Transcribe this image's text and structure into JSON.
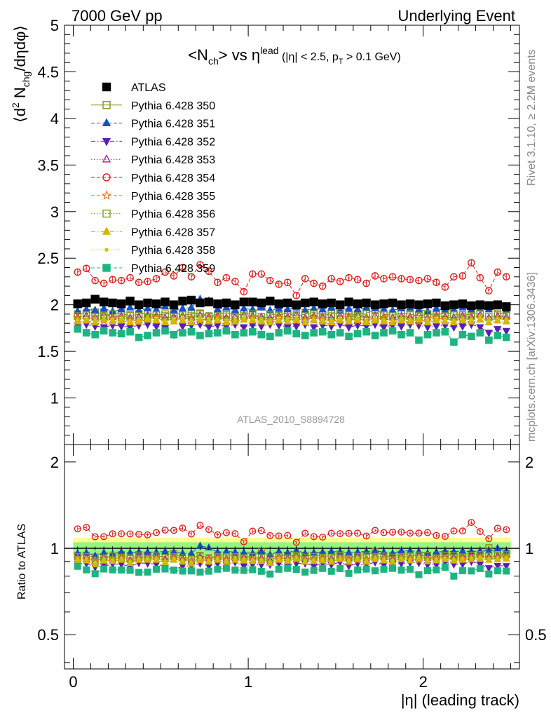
{
  "header": {
    "left": "7000 GeV pp",
    "right": "Underlying Event"
  },
  "side_labels": {
    "rivet": "Rivet 3.1.10, ≥ 2.2M events",
    "mcplots": "mcplots.cern.ch [arXiv:1306.3436]"
  },
  "chart_data": {
    "type": "scatter",
    "title": {
      "lhs": "<N",
      "lhs_sub": "ch",
      "mid": "> vs η",
      "mid_sup": "lead",
      "cond1": " (|η| < 2.5, p",
      "cond_sub": "T",
      "cond2": " > 0.1 GeV)"
    },
    "ylabel": {
      "a": "⟨d",
      "a_sup": "2",
      "b": " N",
      "b_sub": "chg",
      "c": "/dηdφ⟩"
    },
    "ratio_ylabel": "Ratio to ATLAS",
    "xlabel": "|η| (leading track)",
    "analysis_label": "ATLAS_2010_S8894728",
    "xlim": [
      -0.05,
      2.55
    ],
    "ylim": [
      0.5,
      5.0
    ],
    "ratio_ylim": [
      0.38,
      2.3
    ],
    "x_ticks": [
      "0",
      "1",
      "2"
    ],
    "y_ticks": [
      "1",
      "1.5",
      "2",
      "2.5",
      "3",
      "3.5",
      "4",
      "4.5",
      "5"
    ],
    "ratio_y_ticks": [
      "0.5",
      "1",
      "2"
    ],
    "band": {
      "inner": 0.05,
      "outer": 0.09
    },
    "x": [
      0.025,
      0.075,
      0.125,
      0.175,
      0.225,
      0.275,
      0.325,
      0.375,
      0.425,
      0.475,
      0.525,
      0.575,
      0.625,
      0.675,
      0.725,
      0.775,
      0.825,
      0.875,
      0.925,
      0.975,
      1.025,
      1.075,
      1.125,
      1.175,
      1.225,
      1.275,
      1.325,
      1.375,
      1.425,
      1.475,
      1.525,
      1.575,
      1.625,
      1.675,
      1.725,
      1.775,
      1.825,
      1.875,
      1.925,
      1.975,
      2.025,
      2.075,
      2.125,
      2.175,
      2.225,
      2.275,
      2.325,
      2.375,
      2.425,
      2.475
    ],
    "series": [
      {
        "name": "ATLAS",
        "color": "#000000",
        "marker": "filled-square",
        "line": "none",
        "values": [
          2.01,
          2.02,
          2.06,
          2.03,
          2.02,
          2.01,
          2.04,
          2.0,
          2.02,
          2.01,
          2.03,
          2.0,
          2.04,
          2.05,
          2.02,
          2.03,
          2.01,
          2.02,
          2.0,
          2.03,
          2.03,
          2.02,
          2.04,
          2.01,
          2.02,
          2.0,
          2.02,
          2.03,
          2.01,
          2.02,
          2.0,
          2.03,
          2.01,
          2.02,
          2.0,
          2.01,
          2.02,
          2.0,
          2.01,
          2.0,
          2.01,
          2.02,
          1.99,
          2.0,
          2.01,
          1.99,
          2.0,
          1.99,
          2.0,
          1.98
        ]
      },
      {
        "name": "Pythia 6.428 350",
        "color": "#8c8c1e",
        "marker": "open-square",
        "line": "solid",
        "values": [
          1.9,
          1.91,
          1.92,
          1.89,
          1.9,
          1.91,
          1.88,
          1.9,
          1.91,
          1.89,
          1.9,
          1.92,
          1.89,
          1.9,
          1.91,
          1.88,
          1.9,
          1.91,
          1.89,
          1.9,
          1.91,
          1.98,
          1.9,
          1.89,
          1.91,
          1.88,
          1.9,
          1.92,
          1.89,
          1.9,
          1.91,
          1.89,
          1.9,
          1.91,
          1.95,
          1.9,
          1.89,
          1.91,
          1.9,
          1.88,
          1.9,
          1.89,
          1.91,
          1.9,
          1.89,
          1.9,
          1.91,
          2.0,
          1.91,
          1.9
        ]
      },
      {
        "name": "Pythia 6.428 351",
        "color": "#1450c8",
        "marker": "filled-triangle-up",
        "line": "dashed",
        "values": [
          1.93,
          1.95,
          1.94,
          1.96,
          1.93,
          1.95,
          1.97,
          1.94,
          1.96,
          1.95,
          1.98,
          1.94,
          1.96,
          1.97,
          2.06,
          2.04,
          1.95,
          1.97,
          1.94,
          1.96,
          1.95,
          1.97,
          1.94,
          1.96,
          1.95,
          1.97,
          1.94,
          1.96,
          1.95,
          1.97,
          1.94,
          1.96,
          1.95,
          1.97,
          1.96,
          1.95,
          1.94,
          1.96,
          1.97,
          1.95,
          1.93,
          1.96,
          1.94,
          1.95,
          1.97,
          1.94,
          1.96,
          1.95,
          2.0,
          1.94
        ]
      },
      {
        "name": "Pythia 6.428 352",
        "color": "#5a1eb4",
        "marker": "filled-triangle-down",
        "line": "dashdot",
        "values": [
          1.78,
          1.79,
          1.77,
          1.76,
          1.78,
          1.77,
          1.76,
          1.78,
          1.79,
          1.77,
          1.75,
          1.68,
          1.77,
          1.78,
          1.79,
          1.76,
          1.78,
          1.77,
          1.79,
          1.76,
          1.78,
          1.77,
          1.79,
          1.78,
          1.76,
          1.77,
          1.79,
          1.76,
          1.78,
          1.77,
          1.79,
          1.76,
          1.78,
          1.77,
          1.79,
          1.76,
          1.78,
          1.77,
          1.79,
          1.78,
          1.76,
          1.77,
          1.78,
          1.76,
          1.77,
          1.79,
          1.76,
          1.7,
          1.74,
          1.72
        ]
      },
      {
        "name": "Pythia 6.428 353",
        "color": "#b41e8c",
        "marker": "open-triangle-up",
        "line": "dotted",
        "values": [
          1.87,
          1.88,
          1.86,
          1.89,
          1.87,
          1.88,
          1.86,
          1.87,
          1.89,
          1.88,
          1.86,
          1.87,
          1.88,
          1.86,
          1.89,
          1.87,
          1.88,
          1.86,
          1.87,
          1.89,
          1.88,
          1.87,
          1.86,
          1.88,
          1.87,
          1.89,
          1.86,
          1.88,
          1.87,
          1.86,
          1.88,
          1.87,
          1.89,
          1.86,
          1.88,
          1.87,
          1.86,
          1.88,
          1.87,
          1.89,
          1.86,
          1.88,
          1.87,
          1.86,
          1.88,
          1.87,
          1.89,
          1.86,
          1.88,
          1.87
        ]
      },
      {
        "name": "Pythia 6.428 354",
        "color": "#dc1e1e",
        "marker": "open-circle",
        "line": "dashed",
        "values": [
          2.35,
          2.39,
          2.26,
          2.23,
          2.27,
          2.26,
          2.29,
          2.24,
          2.25,
          2.28,
          2.35,
          2.31,
          2.4,
          2.3,
          2.43,
          2.36,
          2.24,
          2.29,
          2.25,
          2.14,
          2.33,
          2.33,
          2.26,
          2.22,
          2.24,
          2.1,
          2.28,
          2.23,
          2.2,
          2.28,
          2.25,
          2.29,
          2.27,
          2.23,
          2.31,
          2.28,
          2.3,
          2.28,
          2.27,
          2.26,
          2.28,
          2.24,
          2.19,
          2.3,
          2.31,
          2.45,
          2.29,
          2.15,
          2.35,
          2.3
        ]
      },
      {
        "name": "Pythia 6.428 355",
        "color": "#f0781e",
        "marker": "open-star",
        "line": "dashed",
        "values": [
          1.86,
          1.84,
          1.87,
          1.83,
          1.85,
          1.86,
          1.84,
          1.82,
          1.85,
          1.86,
          1.83,
          1.85,
          1.84,
          1.86,
          1.83,
          1.85,
          1.86,
          1.84,
          1.82,
          1.85,
          1.86,
          1.84,
          1.83,
          1.86,
          1.85,
          1.83,
          1.84,
          1.86,
          1.85,
          1.82,
          1.84,
          1.86,
          1.83,
          1.85,
          1.84,
          1.86,
          1.83,
          1.85,
          1.84,
          1.82,
          1.85,
          1.86,
          1.84,
          1.83,
          1.85,
          1.84,
          1.86,
          1.83,
          1.85,
          1.84
        ]
      },
      {
        "name": "Pythia 6.428 356",
        "color": "#78a01e",
        "marker": "open-square",
        "line": "dotted",
        "values": [
          1.88,
          1.89,
          1.87,
          1.88,
          1.9,
          1.87,
          1.89,
          1.88,
          1.86,
          1.89,
          1.88,
          1.87,
          1.89,
          1.88,
          1.9,
          1.87,
          1.88,
          1.89,
          1.87,
          1.88,
          1.9,
          1.87,
          1.89,
          1.88,
          1.87,
          1.89,
          1.88,
          1.9,
          1.87,
          1.88,
          1.89,
          1.87,
          1.88,
          1.9,
          1.87,
          1.89,
          1.88,
          1.87,
          1.89,
          1.88,
          1.9,
          1.87,
          1.88,
          1.89,
          1.87,
          1.88,
          1.9,
          1.87,
          1.89,
          1.88
        ]
      },
      {
        "name": "Pythia 6.428 357",
        "color": "#d2b400",
        "marker": "filled-triangle-up",
        "line": "dashdot",
        "values": [
          1.82,
          1.83,
          1.81,
          1.84,
          1.82,
          1.83,
          1.81,
          1.82,
          1.84,
          1.83,
          1.81,
          1.82,
          1.83,
          1.81,
          1.84,
          1.82,
          1.83,
          1.81,
          1.82,
          1.84,
          1.83,
          1.82,
          1.81,
          1.83,
          1.82,
          1.84,
          1.81,
          1.83,
          1.82,
          1.81,
          1.83,
          1.82,
          1.84,
          1.81,
          1.83,
          1.82,
          1.81,
          1.83,
          1.82,
          1.84,
          1.81,
          1.83,
          1.82,
          1.81,
          1.83,
          1.82,
          1.84,
          1.81,
          1.83,
          1.82
        ]
      },
      {
        "name": "Pythia 6.428 358",
        "color": "#c8c800",
        "marker": "small-dot",
        "line": "dotted",
        "values": [
          1.84,
          1.85,
          1.83,
          1.86,
          1.84,
          1.85,
          1.83,
          1.84,
          1.86,
          1.85,
          1.83,
          1.84,
          1.85,
          1.83,
          1.86,
          1.84,
          1.85,
          1.83,
          1.84,
          1.86,
          1.85,
          1.84,
          1.83,
          1.85,
          1.84,
          1.86,
          1.83,
          1.85,
          1.84,
          1.83,
          1.85,
          1.84,
          1.86,
          1.83,
          1.85,
          1.84,
          1.83,
          1.85,
          1.84,
          1.86,
          1.83,
          1.85,
          1.84,
          1.83,
          1.85,
          1.84,
          1.86,
          1.83,
          1.85,
          1.84
        ]
      },
      {
        "name": "Pythia 6.428 359",
        "color": "#1eb482",
        "marker": "filled-square",
        "line": "dashed",
        "values": [
          1.74,
          1.7,
          1.68,
          1.72,
          1.7,
          1.69,
          1.71,
          1.65,
          1.67,
          1.7,
          1.72,
          1.68,
          1.7,
          1.71,
          1.67,
          1.69,
          1.7,
          1.72,
          1.68,
          1.7,
          1.71,
          1.68,
          1.66,
          1.7,
          1.72,
          1.69,
          1.67,
          1.7,
          1.71,
          1.68,
          1.7,
          1.66,
          1.69,
          1.71,
          1.67,
          1.7,
          1.72,
          1.68,
          1.7,
          1.62,
          1.68,
          1.7,
          1.71,
          1.6,
          1.68,
          1.66,
          1.7,
          1.62,
          1.67,
          1.65
        ]
      }
    ]
  }
}
